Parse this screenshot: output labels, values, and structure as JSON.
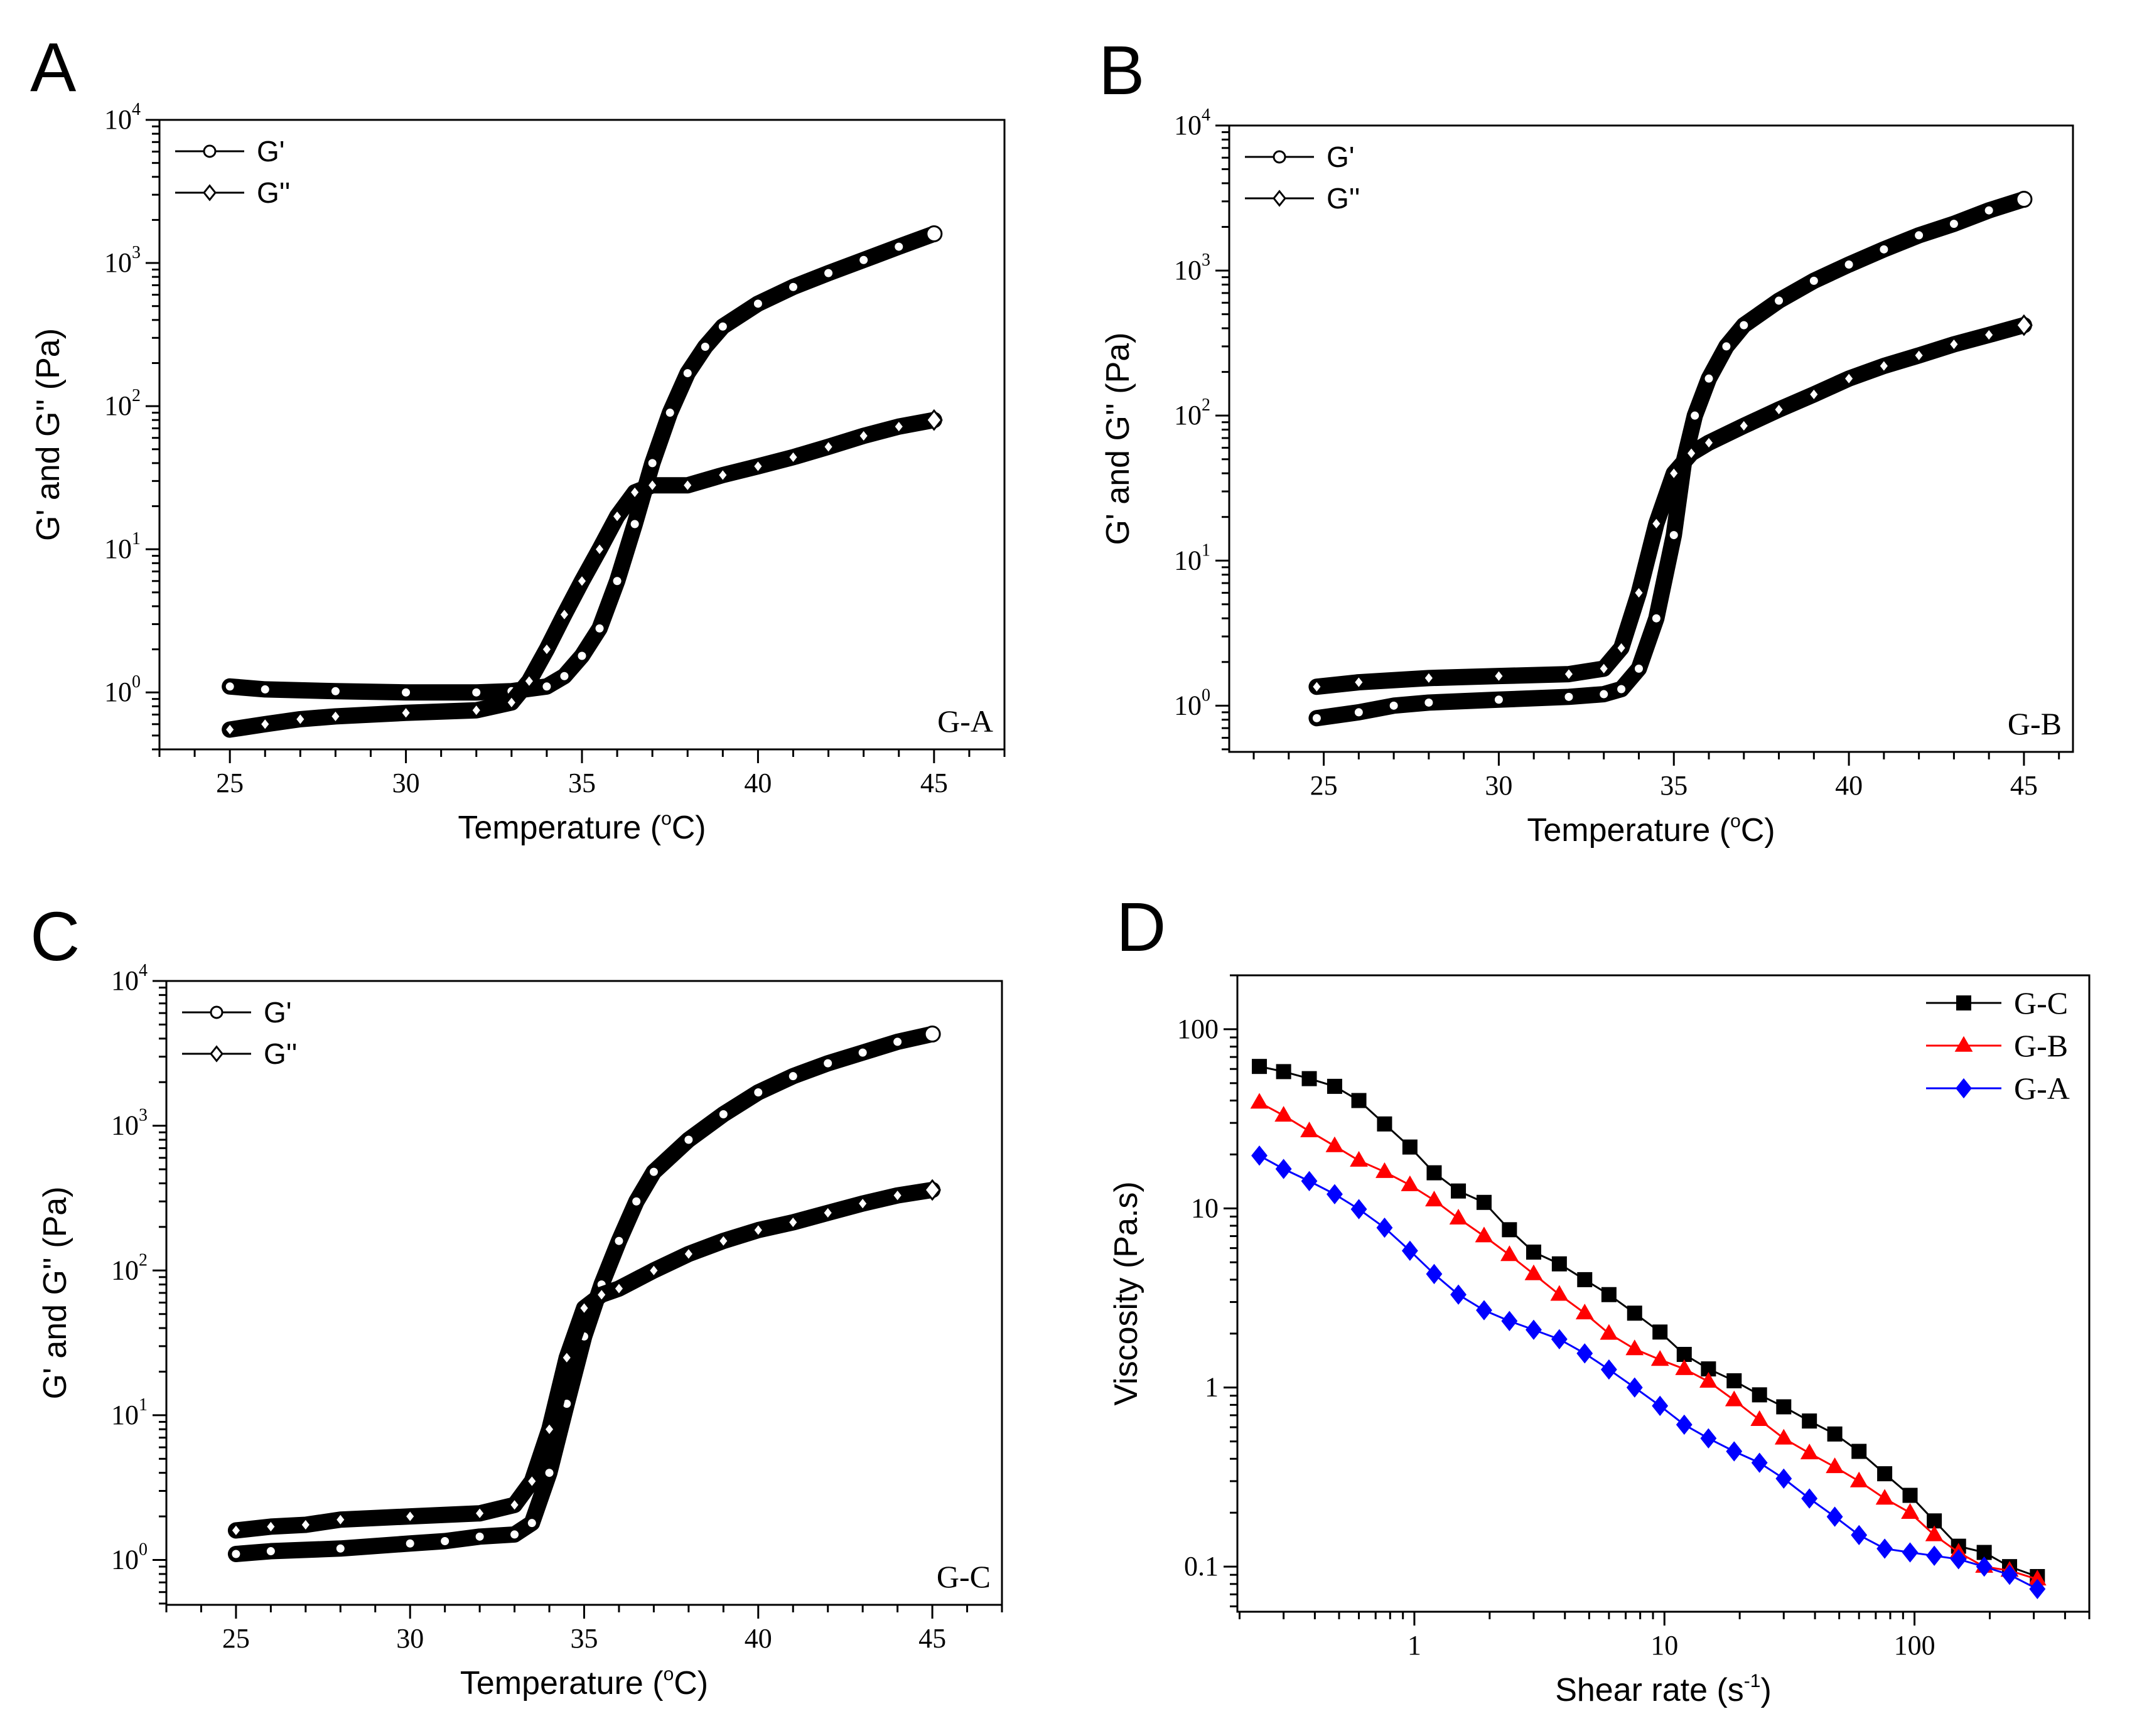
{
  "chart_data": [
    {
      "panel": "A",
      "type": "scatter",
      "sample_label": "G-A",
      "xlabel": {
        "prefix": "Temperature (",
        "sup": "o",
        "suffix": "C)"
      },
      "ylabel": "G' and G'' (Pa)",
      "xscale": "linear",
      "yscale": "log",
      "xlim": [
        23,
        47
      ],
      "ylim": [
        0.4,
        10000
      ],
      "xticks": [
        25,
        30,
        35,
        40,
        45
      ],
      "yticks": [
        {
          "base": "10",
          "exp": "0",
          "value": 1
        },
        {
          "base": "10",
          "exp": "1",
          "value": 10
        },
        {
          "base": "10",
          "exp": "2",
          "value": 100
        },
        {
          "base": "10",
          "exp": "3",
          "value": 1000
        },
        {
          "base": "10",
          "exp": "4",
          "value": 10000
        }
      ],
      "legend_position": "top-left",
      "series": [
        {
          "name": "G'",
          "marker": "circle",
          "x": [
            25,
            26,
            28,
            30,
            32,
            33,
            34,
            34.5,
            35,
            35.5,
            36,
            36.5,
            37,
            37.5,
            38,
            38.5,
            39,
            40,
            41,
            42,
            43,
            44,
            45
          ],
          "y": [
            1.1,
            1.05,
            1.02,
            1.0,
            1.0,
            1.02,
            1.1,
            1.3,
            1.8,
            2.8,
            6,
            15,
            40,
            90,
            170,
            260,
            360,
            520,
            680,
            850,
            1050,
            1300,
            1600
          ]
        },
        {
          "name": "G''",
          "marker": "diamond",
          "x": [
            25,
            26,
            27,
            28,
            30,
            32,
            33,
            33.5,
            34,
            34.5,
            35,
            35.5,
            36,
            36.5,
            37,
            38,
            39,
            40,
            41,
            42,
            43,
            44,
            45
          ],
          "y": [
            0.55,
            0.6,
            0.65,
            0.68,
            0.72,
            0.75,
            0.85,
            1.2,
            2,
            3.5,
            6,
            10,
            17,
            25,
            28,
            28,
            33,
            38,
            44,
            52,
            62,
            72,
            80
          ]
        }
      ]
    },
    {
      "panel": "B",
      "type": "scatter",
      "sample_label": "G-B",
      "xlabel": {
        "prefix": "Temperature (",
        "sup": "o",
        "suffix": "C)"
      },
      "ylabel": "G' and G'' (Pa)",
      "xscale": "linear",
      "yscale": "log",
      "xlim": [
        22.3,
        46.4
      ],
      "ylim": [
        0.48,
        10000
      ],
      "xticks": [
        25,
        30,
        35,
        40,
        45
      ],
      "yticks": [
        {
          "base": "10",
          "exp": "0",
          "value": 1
        },
        {
          "base": "10",
          "exp": "1",
          "value": 10
        },
        {
          "base": "10",
          "exp": "2",
          "value": 100
        },
        {
          "base": "10",
          "exp": "3",
          "value": 1000
        },
        {
          "base": "10",
          "exp": "4",
          "value": 10000
        }
      ],
      "legend_position": "top-left",
      "series": [
        {
          "name": "G'",
          "marker": "circle",
          "x": [
            24.8,
            26,
            27,
            28,
            30,
            32,
            33,
            33.5,
            34,
            34.5,
            35,
            35.3,
            35.6,
            36,
            36.5,
            37,
            38,
            39,
            40,
            41,
            42,
            43,
            44,
            45
          ],
          "y": [
            0.82,
            0.9,
            1.0,
            1.05,
            1.1,
            1.15,
            1.2,
            1.3,
            1.8,
            4,
            15,
            50,
            100,
            180,
            300,
            420,
            620,
            850,
            1100,
            1400,
            1750,
            2100,
            2600,
            3100
          ]
        },
        {
          "name": "G''",
          "marker": "diamond",
          "x": [
            24.8,
            26,
            28,
            30,
            32,
            33,
            33.5,
            34,
            34.5,
            35,
            35.5,
            36,
            37,
            38,
            39,
            40,
            41,
            42,
            43,
            44,
            45
          ],
          "y": [
            1.35,
            1.45,
            1.55,
            1.6,
            1.65,
            1.8,
            2.5,
            6,
            18,
            40,
            55,
            65,
            85,
            110,
            140,
            180,
            220,
            260,
            310,
            360,
            420
          ]
        }
      ]
    },
    {
      "panel": "C",
      "type": "scatter",
      "sample_label": "G-C",
      "xlabel": {
        "prefix": "Temperature (",
        "sup": "o",
        "suffix": "C)"
      },
      "ylabel": "G' and G'' (Pa)",
      "xscale": "linear",
      "yscale": "log",
      "xlim": [
        23,
        47
      ],
      "ylim": [
        0.49,
        10000
      ],
      "xticks": [
        25,
        30,
        35,
        40,
        45
      ],
      "yticks": [
        {
          "base": "10",
          "exp": "0",
          "value": 1
        },
        {
          "base": "10",
          "exp": "1",
          "value": 10
        },
        {
          "base": "10",
          "exp": "2",
          "value": 100
        },
        {
          "base": "10",
          "exp": "3",
          "value": 1000
        },
        {
          "base": "10",
          "exp": "4",
          "value": 10000
        }
      ],
      "legend_position": "top-left",
      "series": [
        {
          "name": "G'",
          "marker": "circle",
          "x": [
            25,
            26,
            28,
            30,
            31,
            32,
            33,
            33.5,
            34,
            34.5,
            35,
            35.5,
            36,
            36.5,
            37,
            38,
            39,
            40,
            41,
            42,
            43,
            44,
            45
          ],
          "y": [
            1.1,
            1.15,
            1.2,
            1.3,
            1.35,
            1.45,
            1.5,
            1.8,
            4,
            12,
            35,
            80,
            160,
            300,
            480,
            800,
            1200,
            1700,
            2200,
            2700,
            3200,
            3800,
            4300
          ]
        },
        {
          "name": "G''",
          "marker": "diamond",
          "x": [
            25,
            26,
            27,
            28,
            30,
            32,
            33,
            33.5,
            34,
            34.5,
            35,
            35.5,
            36,
            37,
            38,
            39,
            40,
            41,
            42,
            43,
            44,
            45
          ],
          "y": [
            1.6,
            1.7,
            1.75,
            1.9,
            2.0,
            2.1,
            2.4,
            3.5,
            8,
            25,
            55,
            68,
            75,
            100,
            130,
            160,
            190,
            215,
            250,
            290,
            330,
            360
          ]
        }
      ]
    },
    {
      "panel": "D",
      "type": "line",
      "xlabel": {
        "prefix": "Shear rate (s",
        "sup": "-1",
        "suffix": ")"
      },
      "ylabel": "Viscosity (Pa.s)",
      "xscale": "log",
      "yscale": "log",
      "xlim": [
        0.196,
        500
      ],
      "ylim": [
        0.056,
        200
      ],
      "xticks": [
        {
          "label": "1",
          "value": 1
        },
        {
          "label": "10",
          "value": 10
        },
        {
          "label": "100",
          "value": 100
        }
      ],
      "yticks": [
        {
          "label": "0.1",
          "value": 0.1
        },
        {
          "label": "1",
          "value": 1
        },
        {
          "label": "10",
          "value": 10
        },
        {
          "label": "100",
          "value": 100
        }
      ],
      "legend_position": "top-right",
      "x": [
        0.24,
        0.3,
        0.38,
        0.48,
        0.6,
        0.76,
        0.96,
        1.2,
        1.5,
        1.9,
        2.4,
        3.0,
        3.8,
        4.8,
        6.0,
        7.6,
        9.6,
        12,
        15,
        19,
        24,
        30,
        38,
        48,
        60,
        76,
        96,
        120,
        150,
        190,
        240,
        310
      ],
      "series": [
        {
          "name": "G-C",
          "marker": "square",
          "color": "#000000",
          "y": [
            62,
            58,
            53,
            48,
            40,
            29.6,
            22,
            15.8,
            12.5,
            10.8,
            7.6,
            5.7,
            4.9,
            4.0,
            3.3,
            2.6,
            2.04,
            1.53,
            1.27,
            1.09,
            0.91,
            0.78,
            0.65,
            0.55,
            0.44,
            0.33,
            0.25,
            0.18,
            0.13,
            0.12,
            0.1,
            0.088
          ]
        },
        {
          "name": "G-B",
          "marker": "triangle",
          "color": "#ff0000",
          "y": [
            39,
            33,
            27,
            22.3,
            18.5,
            16,
            13.5,
            11.1,
            8.8,
            7.0,
            5.5,
            4.3,
            3.3,
            2.6,
            2.0,
            1.64,
            1.43,
            1.27,
            1.08,
            0.85,
            0.66,
            0.52,
            0.43,
            0.36,
            0.3,
            0.24,
            0.2,
            0.15,
            0.12,
            0.1,
            0.095,
            0.085
          ]
        },
        {
          "name": "G-A",
          "marker": "diamond",
          "color": "#0000ff",
          "y": [
            19.7,
            16.6,
            14.2,
            12.0,
            9.9,
            7.8,
            5.8,
            4.3,
            3.3,
            2.7,
            2.35,
            2.1,
            1.86,
            1.55,
            1.26,
            1.0,
            0.79,
            0.62,
            0.52,
            0.44,
            0.38,
            0.31,
            0.24,
            0.19,
            0.15,
            0.126,
            0.12,
            0.115,
            0.11,
            0.1,
            0.09,
            0.075
          ]
        }
      ]
    }
  ]
}
